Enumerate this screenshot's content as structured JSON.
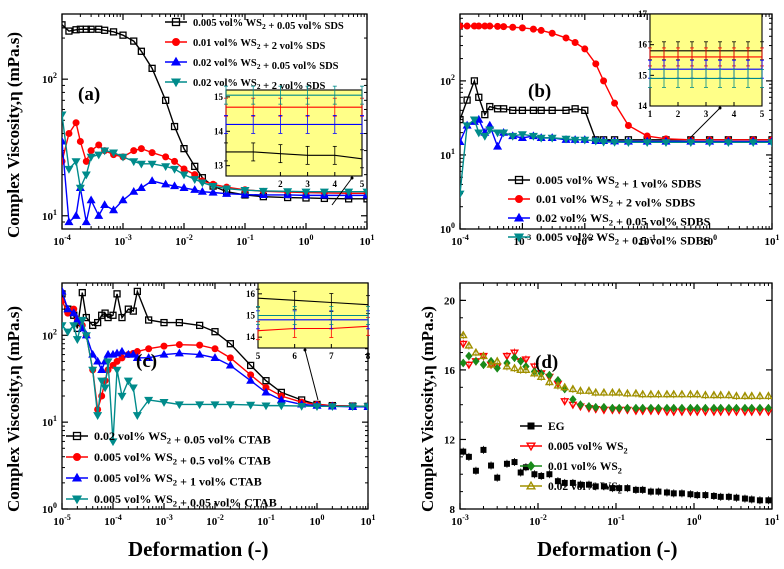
{
  "figure": {
    "xlabel": "Deformation (-)",
    "ylabel": "Complex Viscosity,η (mPa.s)"
  },
  "chart_data": [
    {
      "panel": "(a)",
      "type": "line",
      "xscale": "log",
      "yscale": "log",
      "xlim": [
        0.0001,
        10
      ],
      "ylim": [
        8,
        300
      ],
      "xticks": [
        "10-4",
        "10-3",
        "10-2",
        "10-1",
        "100",
        "101"
      ],
      "yticks": [
        "101",
        "102"
      ],
      "x": [
        0.0001,
        0.00013,
        0.00017,
        0.0002,
        0.00025,
        0.0003,
        0.0004,
        0.0005,
        0.0007,
        0.001,
        0.0015,
        0.002,
        0.003,
        0.005,
        0.007,
        0.01,
        0.015,
        0.02,
        0.03,
        0.05,
        0.1,
        0.2,
        0.5,
        1,
        2,
        5,
        10
      ],
      "series": [
        {
          "name": "0.005 vol% WS2 + 0.05 vol% SDS",
          "color": "#000000",
          "marker": "square",
          "values": [
            250,
            225,
            230,
            232,
            232,
            232,
            232,
            228,
            222,
            210,
            190,
            160,
            120,
            70,
            45,
            31,
            23,
            19,
            16.5,
            15,
            14.2,
            13.8,
            13.6,
            13.5,
            13.4,
            13.3,
            13.3
          ]
        },
        {
          "name": "0.01 vol% WS2 + 2 vol% SDS",
          "color": "#ff0000",
          "marker": "circle",
          "values": [
            25,
            40,
            48,
            35,
            25,
            30,
            33,
            30,
            28,
            27,
            30,
            31,
            29,
            27,
            25,
            22,
            20,
            18,
            17,
            16.2,
            15.5,
            15.1,
            14.9,
            14.8,
            14.7,
            14.6,
            14.6
          ]
        },
        {
          "name": "0.02 vol% WS2 + 0.05 vol% SDS",
          "color": "#0000ff",
          "marker": "triangle",
          "values": [
            35,
            9,
            10,
            16,
            9,
            13,
            10,
            12,
            11,
            13,
            15,
            16,
            18,
            17,
            16.5,
            16,
            15.5,
            15,
            14.8,
            14.5,
            14.3,
            14.2,
            14.2,
            14.1,
            14.1,
            14.1,
            14.1
          ]
        },
        {
          "name": "0.02 vol% WS2 + 2 vol% SDS",
          "color": "#008b8b",
          "marker": "triangle-down",
          "values": [
            55,
            22,
            25,
            16,
            20,
            27,
            28,
            30,
            29,
            27,
            25,
            24,
            24,
            23,
            22,
            20,
            18.5,
            17.5,
            16.5,
            15.8,
            15.4,
            15.2,
            15.1,
            15,
            15,
            15,
            15
          ]
        }
      ],
      "inset": {
        "xlim": [
          0,
          5
        ],
        "ylim": [
          12.7,
          15.2
        ],
        "xticks": [
          "2",
          "3",
          "4",
          "5"
        ],
        "yticks": [
          "13",
          "14",
          "15"
        ],
        "x": [
          0,
          1,
          2,
          3,
          4,
          5
        ],
        "series": [
          [
            13.4,
            13.4,
            13.35,
            13.3,
            13.3,
            13.2
          ],
          [
            14.7,
            14.7,
            14.7,
            14.7,
            14.7,
            14.7
          ],
          [
            14.2,
            14.2,
            14.2,
            14.2,
            14.2,
            14.2
          ],
          [
            15.05,
            15.05,
            15.05,
            15.05,
            15.05,
            15.05
          ]
        ]
      }
    },
    {
      "panel": "(b)",
      "type": "line",
      "xscale": "log",
      "yscale": "log",
      "xlim": [
        0.0001,
        10
      ],
      "ylim": [
        1,
        800
      ],
      "xticks": [
        "10-4",
        "10-3",
        "10-2",
        "10-1",
        "100",
        "101"
      ],
      "yticks": [
        "100",
        "101",
        "102"
      ],
      "x": [
        0.0001,
        0.00013,
        0.00017,
        0.0002,
        0.00025,
        0.0003,
        0.0004,
        0.0005,
        0.0007,
        0.001,
        0.0015,
        0.002,
        0.003,
        0.005,
        0.007,
        0.01,
        0.015,
        0.02,
        0.03,
        0.05,
        0.1,
        0.2,
        0.5,
        1,
        2,
        5,
        10
      ],
      "series": [
        {
          "name": "0.005 vol% WS2 + 1 vol% SDBS",
          "color": "#000000",
          "marker": "square",
          "values": [
            30,
            55,
            100,
            60,
            35,
            45,
            42,
            42,
            40,
            40,
            40,
            40,
            40,
            40,
            42,
            40,
            16,
            16,
            16,
            16,
            16,
            16,
            16,
            16,
            16,
            16,
            16
          ]
        },
        {
          "name": "0.01 vol% WS2 + 2 vol% SDBS",
          "color": "#ff0000",
          "marker": "circle",
          "values": [
            550,
            550,
            550,
            550,
            550,
            550,
            545,
            540,
            530,
            520,
            500,
            480,
            440,
            380,
            330,
            270,
            170,
            100,
            50,
            25,
            18,
            16.5,
            16,
            16,
            16,
            16,
            16
          ]
        },
        {
          "name": "0.02 vol% WS2 + 0.05 vol% SDBS",
          "color": "#0000ff",
          "marker": "triangle",
          "values": [
            15,
            25,
            28,
            30,
            20,
            25,
            13,
            20,
            18,
            17,
            18,
            17,
            17,
            16,
            16,
            16,
            15.5,
            15.5,
            15.3,
            15.2,
            15.2,
            15.2,
            15.2,
            15.2,
            15.2,
            15.2,
            15.2
          ]
        },
        {
          "name": "0.005 vol% WS2 + 0.5 vol% SDBS",
          "color": "#008b8b",
          "marker": "triangle-down",
          "values": [
            3,
            25,
            30,
            20,
            18,
            22,
            20,
            20,
            18,
            19,
            18,
            17,
            17,
            16.5,
            16,
            16,
            15.5,
            15,
            14.9,
            14.8,
            14.8,
            14.8,
            14.8,
            14.8,
            14.8,
            14.8,
            14.8
          ]
        }
      ],
      "inset": {
        "xlim": [
          1,
          5
        ],
        "ylim": [
          14,
          17
        ],
        "xticks": [
          "1",
          "2",
          "3",
          "4",
          "5"
        ],
        "yticks": [
          "14",
          "15",
          "16",
          "17"
        ],
        "x": [
          1,
          1.5,
          2,
          2.5,
          3,
          3.5,
          4,
          4.5,
          5
        ],
        "series": [
          [
            15.8,
            15.8,
            15.8,
            15.8,
            15.8,
            15.8,
            15.8,
            15.8,
            15.8
          ],
          [
            15.6,
            15.6,
            15.6,
            15.6,
            15.6,
            15.6,
            15.6,
            15.6,
            15.6
          ],
          [
            15.2,
            15.2,
            15.2,
            15.2,
            15.2,
            15.2,
            15.2,
            15.2,
            15.2
          ],
          [
            14.9,
            14.9,
            14.9,
            14.9,
            14.9,
            14.9,
            14.9,
            14.9,
            14.9
          ]
        ]
      }
    },
    {
      "panel": "(c)",
      "type": "line",
      "xscale": "log",
      "yscale": "log",
      "xlim": [
        1e-05,
        10
      ],
      "ylim": [
        1,
        400
      ],
      "xticks": [
        "10-5",
        "10-4",
        "10-3",
        "10-2",
        "10-1",
        "100",
        "101"
      ],
      "yticks": [
        "100",
        "101",
        "102"
      ],
      "x": [
        1e-05,
        1.3e-05,
        1.7e-05,
        2e-05,
        2.5e-05,
        3e-05,
        4e-05,
        5e-05,
        6e-05,
        7e-05,
        8e-05,
        0.0001,
        0.00012,
        0.00015,
        0.0002,
        0.00025,
        0.0003,
        0.0005,
        0.001,
        0.002,
        0.005,
        0.01,
        0.02,
        0.05,
        0.1,
        0.2,
        0.5,
        1,
        2,
        5,
        10
      ],
      "series": [
        {
          "name": "0.02 vol% WS2 + 0.05 vol% CTAB",
          "color": "#000000",
          "marker": "square",
          "values": [
            300,
            200,
            170,
            120,
            310,
            160,
            130,
            140,
            170,
            180,
            160,
            170,
            300,
            160,
            200,
            190,
            320,
            150,
            140,
            140,
            130,
            110,
            80,
            45,
            30,
            22,
            18,
            16,
            15.5,
            15.3,
            15.2
          ]
        },
        {
          "name": "0.005 vol% WS2 + 0.5 vol% CTAB",
          "color": "#ff0000",
          "marker": "circle",
          "values": [
            250,
            180,
            200,
            150,
            130,
            100,
            40,
            14,
            20,
            30,
            40,
            45,
            50,
            55,
            60,
            62,
            65,
            70,
            75,
            78,
            77,
            70,
            55,
            35,
            25,
            20,
            17,
            16,
            15.5,
            15.3,
            15.2
          ]
        },
        {
          "name": "0.005 vol% WS2 + 1 vol% CTAB",
          "color": "#0000ff",
          "marker": "triangle",
          "values": [
            320,
            200,
            180,
            150,
            120,
            100,
            60,
            50,
            40,
            50,
            60,
            60,
            62,
            65,
            60,
            60,
            55,
            55,
            60,
            62,
            60,
            55,
            45,
            30,
            22,
            18,
            16,
            15.5,
            15.2,
            15,
            15
          ]
        },
        {
          "name": "0.005 vol% WS2 + 0.05 vol% CTAB",
          "color": "#008b8b",
          "marker": "triangle-down",
          "values": [
            130,
            110,
            130,
            90,
            150,
            100,
            40,
            12,
            30,
            25,
            50,
            6,
            40,
            20,
            30,
            25,
            12,
            18,
            17,
            16,
            16,
            16,
            16,
            15.8,
            15.5,
            15.5,
            15.3,
            15.2,
            15.2,
            15.2,
            15.2
          ]
        }
      ],
      "inset": {
        "xlim": [
          5,
          8
        ],
        "ylim": [
          13.5,
          16.5
        ],
        "xticks": [
          "5",
          "6",
          "7",
          "8"
        ],
        "yticks": [
          "14",
          "15",
          "16"
        ],
        "x": [
          5,
          6,
          7,
          8
        ],
        "series": [
          [
            15.8,
            15.7,
            15.6,
            15.5
          ],
          [
            14.3,
            14.4,
            14.4,
            14.5
          ],
          [
            14.8,
            14.8,
            14.8,
            14.8
          ],
          [
            15.0,
            15.0,
            15.0,
            15.0
          ]
        ]
      }
    },
    {
      "panel": "(d)",
      "type": "scatter",
      "xscale": "log",
      "yscale": "linear",
      "xlim": [
        0.001,
        10
      ],
      "ylim": [
        8,
        21
      ],
      "xticks": [
        "10-3",
        "10-2",
        "10-1",
        "100",
        "101"
      ],
      "yticks": [
        "8",
        "12",
        "16",
        "20"
      ],
      "x": [
        0.0011,
        0.0013,
        0.0016,
        0.002,
        0.0025,
        0.003,
        0.004,
        0.005,
        0.006,
        0.007,
        0.009,
        0.011,
        0.014,
        0.018,
        0.022,
        0.028,
        0.035,
        0.045,
        0.055,
        0.07,
        0.09,
        0.11,
        0.14,
        0.18,
        0.22,
        0.28,
        0.35,
        0.45,
        0.55,
        0.7,
        0.9,
        1.1,
        1.4,
        1.8,
        2.2,
        2.8,
        3.5,
        4.5,
        5.5,
        7,
        9
      ],
      "series": [
        {
          "name": "EG",
          "color": "#000000",
          "marker": "square",
          "values": [
            11.3,
            11.0,
            10.2,
            11.4,
            10.5,
            9.8,
            10.6,
            10.7,
            10.1,
            10.4,
            10.0,
            9.9,
            10.0,
            9.6,
            9.5,
            9.5,
            9.4,
            9.4,
            9.3,
            9.3,
            9.2,
            9.2,
            9.2,
            9.1,
            9.1,
            9.0,
            9.0,
            8.95,
            8.9,
            8.9,
            8.85,
            8.8,
            8.8,
            8.75,
            8.7,
            8.7,
            8.65,
            8.6,
            8.55,
            8.5,
            8.5
          ]
        },
        {
          "name": "0.005 vol% WS2",
          "color": "#ff0000",
          "marker": "triangle-down-open",
          "values": [
            17.5,
            16.3,
            16.5,
            16.8,
            16.3,
            16.2,
            16.8,
            17.0,
            16.5,
            16.6,
            16.2,
            15.8,
            15.6,
            15.2,
            14.2,
            14.0,
            13.9,
            13.8,
            13.75,
            13.7,
            13.7,
            13.7,
            13.7,
            13.65,
            13.65,
            13.65,
            13.65,
            13.6,
            13.6,
            13.6,
            13.6,
            13.6,
            13.6,
            13.6,
            13.6,
            13.6,
            13.6,
            13.6,
            13.6,
            13.6,
            13.6
          ]
        },
        {
          "name": "0.01 vol% WS2",
          "color": "#1a8a1a",
          "marker": "diamond",
          "values": [
            16.4,
            16.8,
            16.5,
            16.3,
            16.5,
            16.1,
            16.4,
            16.7,
            16.5,
            16.2,
            15.9,
            15.8,
            15.7,
            15.4,
            14.9,
            14.3,
            14.0,
            13.9,
            13.85,
            13.85,
            13.8,
            13.8,
            13.8,
            13.8,
            13.8,
            13.8,
            13.8,
            13.8,
            13.8,
            13.8,
            13.8,
            13.8,
            13.8,
            13.8,
            13.8,
            13.8,
            13.8,
            13.8,
            13.8,
            13.8,
            13.8
          ]
        },
        {
          "name": "0.02 vol% WS2",
          "color": "#a09000",
          "marker": "triangle-open",
          "values": [
            18.0,
            17.4,
            17.0,
            16.8,
            16.3,
            16.5,
            16.2,
            16.1,
            16.0,
            16.0,
            15.8,
            15.6,
            15.3,
            15.1,
            15.0,
            14.9,
            14.8,
            14.8,
            14.7,
            14.7,
            14.7,
            14.7,
            14.65,
            14.65,
            14.6,
            14.6,
            14.6,
            14.6,
            14.6,
            14.6,
            14.6,
            14.6,
            14.55,
            14.55,
            14.55,
            14.55,
            14.5,
            14.5,
            14.5,
            14.5,
            14.5
          ]
        }
      ]
    }
  ]
}
